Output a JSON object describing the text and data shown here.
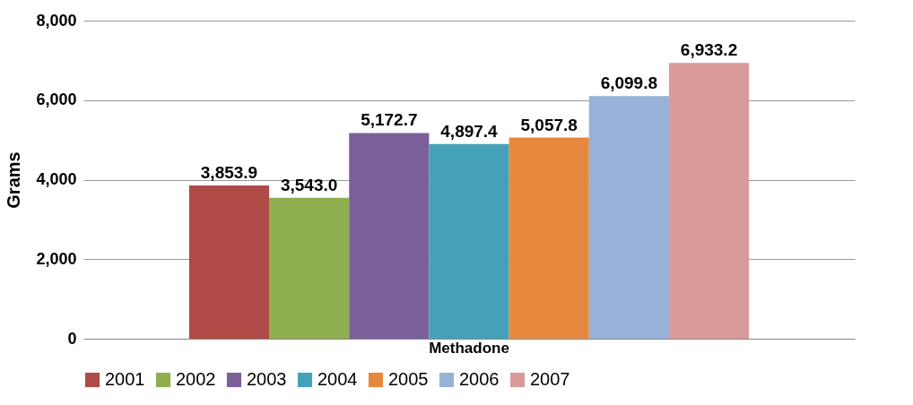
{
  "chart_data": {
    "type": "bar",
    "categories": [
      "Methadone"
    ],
    "ylabel": "Grams",
    "ylim": [
      0,
      8000
    ],
    "yticks": [
      0,
      {
        "value": 2000,
        "label": "2,000"
      },
      {
        "value": 4000,
        "label": "4,000"
      },
      {
        "value": 6000,
        "label": "6,000"
      },
      {
        "value": 8000,
        "label": "8,000"
      }
    ],
    "grid": "y",
    "legend": "bottom",
    "series": [
      {
        "name": "2001",
        "color": "#b04a46",
        "values": [
          3853.9
        ],
        "value_labels": [
          "3,853.9"
        ]
      },
      {
        "name": "2002",
        "color": "#8fae50",
        "values": [
          3543.0
        ],
        "value_labels": [
          "3,543.0"
        ]
      },
      {
        "name": "2003",
        "color": "#7b5f9b",
        "values": [
          5172.7
        ],
        "value_labels": [
          "5,172.7"
        ]
      },
      {
        "name": "2004",
        "color": "#45a1b8",
        "values": [
          4897.4
        ],
        "value_labels": [
          "4,897.4"
        ]
      },
      {
        "name": "2005",
        "color": "#e6893f",
        "values": [
          5057.8
        ],
        "value_labels": [
          "5,057.8"
        ]
      },
      {
        "name": "2006",
        "color": "#98b1d9",
        "values": [
          6099.8
        ],
        "value_labels": [
          "6,099.8"
        ]
      },
      {
        "name": "2007",
        "color": "#d99a9a",
        "values": [
          6933.2
        ],
        "value_labels": [
          "6,933.2"
        ]
      }
    ]
  }
}
